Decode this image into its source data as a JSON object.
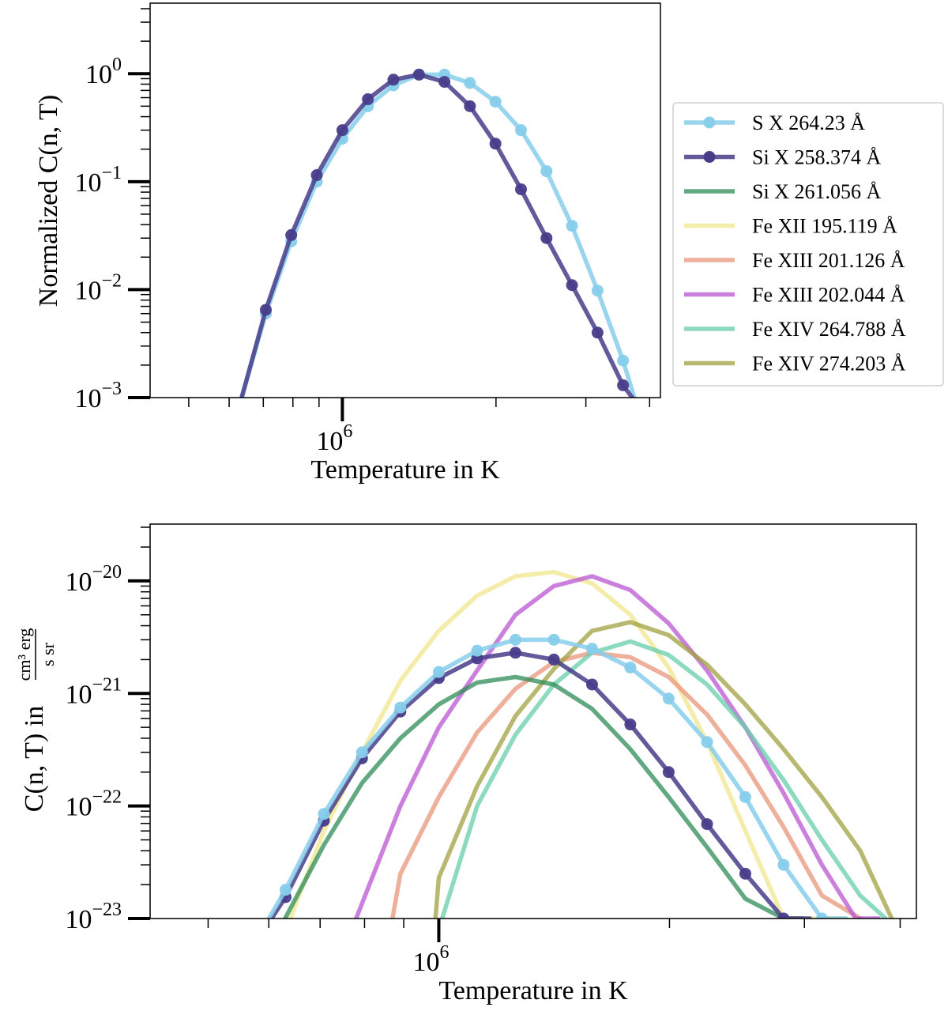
{
  "colors": {
    "S X 264.23 Å": "#87ceeb",
    "Si X 258.374 Å": "#483d8b",
    "Si X 261.056 Å": "#2e8b57",
    "Fe XII 195.119 Å": "#f0e68c",
    "Fe XIII 201.126 Å": "#e9967a",
    "Fe XIII 202.044 Å": "#ba55d3",
    "Fe XIV 264.788 Å": "#66cdaa",
    "Fe XIV 274.203 Å": "#a0a040"
  },
  "chart_data": [
    {
      "type": "line",
      "title": "",
      "xlabel": "Temperature in K",
      "ylabel": "Normalized C(n, T)",
      "xscale": "log",
      "yscale": "log",
      "xlim": [
        420000,
        4200000
      ],
      "ylim": [
        0.001,
        4.5
      ],
      "x_major_tick": 1000000,
      "x_major_tick_label": "10^6",
      "y_major_ticks": [
        {
          "value": 1,
          "base": "10",
          "exp": "0"
        },
        {
          "value": 0.1,
          "base": "10",
          "exp": "−1"
        },
        {
          "value": 0.01,
          "base": "10",
          "exp": "−2"
        },
        {
          "value": 0.001,
          "base": "10",
          "exp": "−3"
        }
      ],
      "series": [
        {
          "name": "S X 264.23 Å",
          "markers": true,
          "x": [
            631000,
            708000,
            794000,
            891000,
            1000000,
            1122000,
            1259000,
            1413000,
            1585000,
            1778000,
            1995000,
            2239000,
            2512000,
            2818000,
            3162000,
            3548000,
            3760000
          ],
          "y": [
            0.0009,
            0.006,
            0.028,
            0.1,
            0.25,
            0.5,
            0.78,
            0.98,
            0.98,
            0.82,
            0.55,
            0.3,
            0.125,
            0.039,
            0.0098,
            0.0022,
            0.0009
          ]
        },
        {
          "name": "Si X 258.374 Å",
          "markers": true,
          "x": [
            631000,
            708000,
            794000,
            891000,
            1000000,
            1122000,
            1259000,
            1413000,
            1585000,
            1778000,
            1995000,
            2239000,
            2512000,
            2818000,
            3162000,
            3548000,
            3760000
          ],
          "y": [
            0.0009,
            0.0065,
            0.032,
            0.115,
            0.3,
            0.58,
            0.88,
            0.98,
            0.84,
            0.5,
            0.225,
            0.085,
            0.03,
            0.011,
            0.004,
            0.0013,
            0.0009
          ]
        }
      ]
    },
    {
      "type": "line",
      "title": "",
      "xlabel": "Temperature in K",
      "ylabel": "C(n, T) in",
      "ylabel_unit_numerator": "cm³ erg",
      "ylabel_unit_denominator": "s sr",
      "xscale": "log",
      "yscale": "log",
      "xlim": [
        420000,
        4200000
      ],
      "ylim": [
        1e-23,
        3.2e-20
      ],
      "x_major_tick": 1000000,
      "x_major_tick_label": "10^6",
      "y_major_ticks": [
        {
          "value": 1e-20,
          "base": "10",
          "exp": "−20"
        },
        {
          "value": 1e-21,
          "base": "10",
          "exp": "−21"
        },
        {
          "value": 1e-22,
          "base": "10",
          "exp": "−22"
        },
        {
          "value": 1e-23,
          "base": "10",
          "exp": "−23"
        }
      ],
      "legend_position": "center-right",
      "series": [
        {
          "name": "Fe XII 195.119 Å",
          "markers": false,
          "x": [
            640000,
            708000,
            794000,
            891000,
            1000000,
            1122000,
            1259000,
            1413000,
            1585000,
            1778000,
            1995000,
            2239000,
            2512000,
            2818000,
            3162000,
            3400000
          ],
          "y": [
            1e-23,
            6e-23,
            3e-22,
            1.3e-21,
            3.6e-21,
            7.4e-21,
            1.1e-20,
            1.2e-20,
            9.5e-21,
            5e-21,
            1.7e-21,
            3.7e-22,
            6e-23,
            1e-23,
            1e-23,
            1e-23
          ]
        },
        {
          "name": "Fe XIII 201.126 Å",
          "markers": false,
          "x": [
            870000,
            891000,
            1000000,
            1122000,
            1259000,
            1413000,
            1585000,
            1778000,
            1995000,
            2239000,
            2512000,
            2818000,
            3162000,
            3550000
          ],
          "y": [
            1e-23,
            2.5e-23,
            1.2e-22,
            4.5e-22,
            1.1e-21,
            1.9e-21,
            2.3e-21,
            2.1e-21,
            1.4e-21,
            6.5e-22,
            2.3e-22,
            6.5e-23,
            1.6e-23,
            1e-23
          ]
        },
        {
          "name": "Fe XIII 202.044 Å",
          "markers": false,
          "x": [
            780000,
            891000,
            1000000,
            1122000,
            1259000,
            1413000,
            1585000,
            1778000,
            1995000,
            2239000,
            2512000,
            2818000,
            3162000,
            3500000,
            3750000
          ],
          "y": [
            1e-23,
            1e-22,
            5e-22,
            1.6e-21,
            5e-21,
            9e-21,
            1.1e-20,
            8.3e-21,
            4.2e-21,
            1.6e-21,
            5e-22,
            1.3e-22,
            3e-23,
            1e-23,
            1e-23
          ]
        },
        {
          "name": "Fe XIV 264.788 Å",
          "markers": false,
          "x": [
            1010000,
            1122000,
            1259000,
            1413000,
            1585000,
            1778000,
            1995000,
            2239000,
            2512000,
            2818000,
            3162000,
            3548000,
            3830000
          ],
          "y": [
            1e-23,
            1e-22,
            4.3e-22,
            1.2e-21,
            2.3e-21,
            2.9e-21,
            2.2e-21,
            1.2e-21,
            5e-22,
            1.7e-22,
            5e-23,
            1.6e-23,
            1e-23
          ]
        },
        {
          "name": "Fe XIV 274.203 Å",
          "markers": false,
          "x": [
            990000,
            1000000,
            1122000,
            1259000,
            1413000,
            1585000,
            1778000,
            1995000,
            2239000,
            2512000,
            2818000,
            3162000,
            3548000,
            3900000
          ],
          "y": [
            1e-23,
            2.3e-23,
            1.5e-22,
            6.3e-22,
            1.65e-21,
            3.6e-21,
            4.3e-21,
            3.3e-21,
            1.8e-21,
            8e-22,
            3.2e-22,
            1.2e-22,
            4e-23,
            1e-23
          ]
        },
        {
          "name": "Si X 261.056 Å",
          "markers": false,
          "x": [
            630000,
            708000,
            794000,
            891000,
            1000000,
            1122000,
            1259000,
            1413000,
            1585000,
            1778000,
            1995000,
            2239000,
            2512000,
            2818000,
            2980000
          ],
          "y": [
            1e-23,
            4.5e-23,
            1.6e-22,
            4e-22,
            8e-22,
            1.25e-21,
            1.4e-21,
            1.2e-21,
            7.3e-22,
            3.2e-22,
            1.2e-22,
            4.3e-23,
            1.5e-23,
            1e-23,
            1e-23
          ]
        },
        {
          "name": "Si X 258.374 Å",
          "markers": true,
          "x": [
            605000,
            631000,
            708000,
            794000,
            891000,
            1000000,
            1122000,
            1259000,
            1413000,
            1585000,
            1778000,
            1995000,
            2239000,
            2512000,
            2818000,
            3050000
          ],
          "y": [
            1e-23,
            1.55e-23,
            7.4e-23,
            2.65e-22,
            6.9e-22,
            1.37e-21,
            2.05e-21,
            2.3e-21,
            2e-21,
            1.2e-21,
            5.3e-22,
            2e-22,
            6.9e-23,
            2.5e-23,
            1e-23,
            1e-23
          ]
        },
        {
          "name": "S X 264.23 Å",
          "markers": true,
          "x": [
            600000,
            631000,
            708000,
            794000,
            891000,
            1000000,
            1122000,
            1259000,
            1413000,
            1585000,
            1778000,
            1995000,
            2239000,
            2512000,
            2818000,
            3162000,
            3400000
          ],
          "y": [
            1e-23,
            1.8e-23,
            8.5e-23,
            3e-22,
            7.5e-22,
            1.55e-21,
            2.4e-21,
            3e-21,
            3e-21,
            2.5e-21,
            1.7e-21,
            9e-22,
            3.7e-22,
            1.2e-22,
            3e-23,
            1e-23,
            1e-23
          ]
        }
      ]
    }
  ],
  "legend": {
    "entries": [
      {
        "name": "S X 264.23 Å",
        "marker": true
      },
      {
        "name": "Si X 258.374 Å",
        "marker": true
      },
      {
        "name": "Si X 261.056 Å",
        "marker": false
      },
      {
        "name": "Fe XII 195.119 Å",
        "marker": false
      },
      {
        "name": "Fe XIII 201.126 Å",
        "marker": false
      },
      {
        "name": "Fe XIII 202.044 Å",
        "marker": false
      },
      {
        "name": "Fe XIV 264.788 Å",
        "marker": false
      },
      {
        "name": "Fe XIV 274.203 Å",
        "marker": false
      }
    ]
  }
}
